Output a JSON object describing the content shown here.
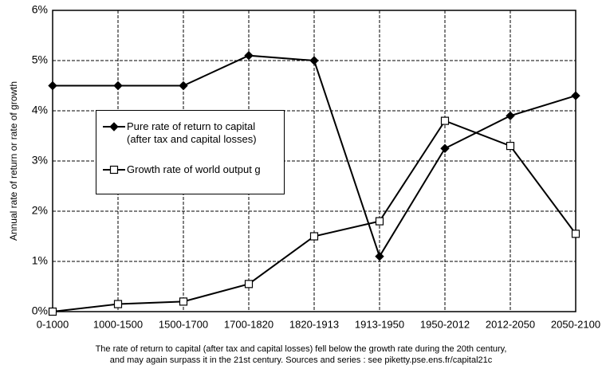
{
  "chart_data": {
    "type": "line",
    "ylabel": "Annual rate of return or rate of growth",
    "categories": [
      "0-1000",
      "1000-1500",
      "1500-1700",
      "1700-1820",
      "1820-1913",
      "1913-1950",
      "1950-2012",
      "2012-2050",
      "2050-2100"
    ],
    "series": [
      {
        "name": "Pure rate of return to capital (after tax and capital losses)",
        "color": "#000000",
        "marker": "diamond",
        "values": [
          4.5,
          4.5,
          4.5,
          5.1,
          5.0,
          1.1,
          3.25,
          3.9,
          4.3
        ]
      },
      {
        "name": "Growth rate of world output g",
        "color": "#000000",
        "marker": "square",
        "values": [
          0.0,
          0.15,
          0.2,
          0.55,
          1.5,
          1.8,
          3.8,
          3.3,
          1.55
        ]
      }
    ],
    "ylim": [
      0,
      6
    ],
    "yticks": [
      {
        "value": 0,
        "label": "0%"
      },
      {
        "value": 1,
        "label": "1%"
      },
      {
        "value": 2,
        "label": "2%"
      },
      {
        "value": 3,
        "label": "3%"
      },
      {
        "value": 4,
        "label": "4%"
      },
      {
        "value": 5,
        "label": "5%"
      },
      {
        "value": 6,
        "label": "6%"
      }
    ],
    "grid": true,
    "caption": [
      "The rate of return to capital (after tax and capital losses) fell below the growth rate during the 20th century,",
      "and may again surpass it in the 21st century. Sources and series : see piketty.pse.ens.fr/capital21c"
    ]
  }
}
